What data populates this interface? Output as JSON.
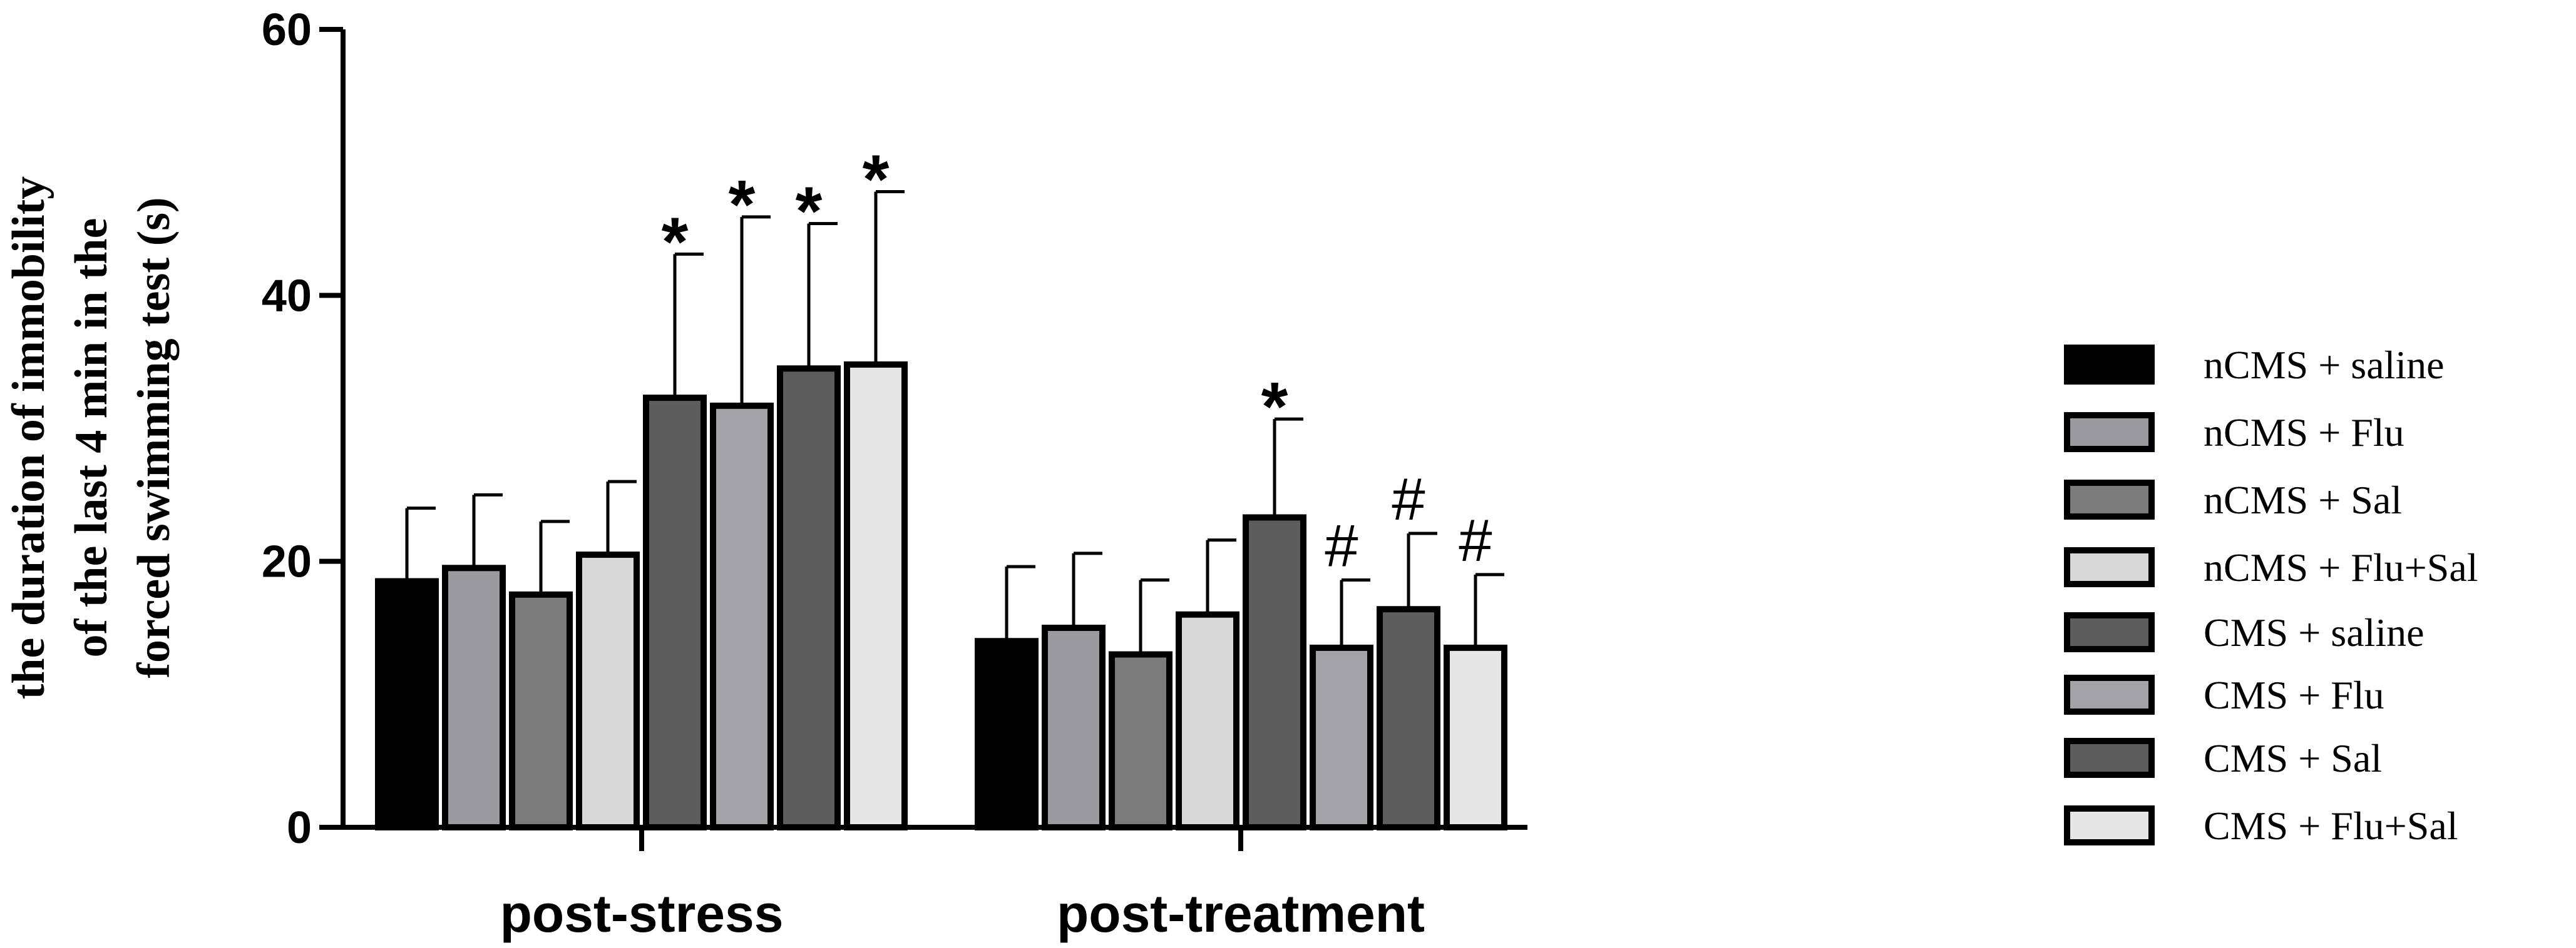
{
  "chart_data": {
    "type": "bar",
    "title": "",
    "ylabel_lines": [
      "the duration of immobility",
      "of  the last 4 min  in the",
      "forced swimming test  (s)"
    ],
    "xlabel": "",
    "ylim": [
      0,
      60
    ],
    "yticks": [
      "0",
      "20",
      "40",
      "60"
    ],
    "categories": [
      "post-stress",
      "post-treatment"
    ],
    "grid": false,
    "legend_position": "right",
    "series": [
      {
        "name": "nCMS + saline",
        "color": "#000000",
        "values": [
          18.5,
          14.0
        ],
        "errors": [
          5.5,
          5.6
        ],
        "annotations": [
          "",
          ""
        ]
      },
      {
        "name": "nCMS + Flu",
        "color": "#9b9b9f",
        "values": [
          19.5,
          15.0
        ],
        "errors": [
          5.5,
          5.6
        ],
        "annotations": [
          "",
          ""
        ]
      },
      {
        "name": "nCMS + Sal",
        "color": "#7b7b7b",
        "values": [
          17.5,
          13.0
        ],
        "errors": [
          5.5,
          5.6
        ],
        "annotations": [
          "",
          ""
        ]
      },
      {
        "name": "nCMS + Flu+Sal",
        "color": "#d8d8d8",
        "values": [
          20.5,
          16.0
        ],
        "errors": [
          5.5,
          5.6
        ],
        "annotations": [
          "",
          ""
        ]
      },
      {
        "name": "CMS + saline",
        "color": "#5d5d5d",
        "values": [
          32.3,
          23.3
        ],
        "errors": [
          10.8,
          7.4
        ],
        "annotations": [
          "*",
          "*"
        ]
      },
      {
        "name": "CMS + Flu",
        "color": "#a3a3a7",
        "values": [
          31.7,
          13.5
        ],
        "errors": [
          14.2,
          5.1
        ],
        "annotations": [
          "*",
          "#"
        ]
      },
      {
        "name": "CMS + Sal",
        "color": "#5d5d5d",
        "values": [
          34.5,
          16.4
        ],
        "errors": [
          10.9,
          5.7
        ],
        "annotations": [
          "*",
          "#"
        ]
      },
      {
        "name": "CMS + Flu+Sal",
        "color": "#e6e6e6",
        "values": [
          34.8,
          13.5
        ],
        "errors": [
          13.0,
          5.5
        ],
        "annotations": [
          "*",
          "#"
        ]
      }
    ]
  }
}
